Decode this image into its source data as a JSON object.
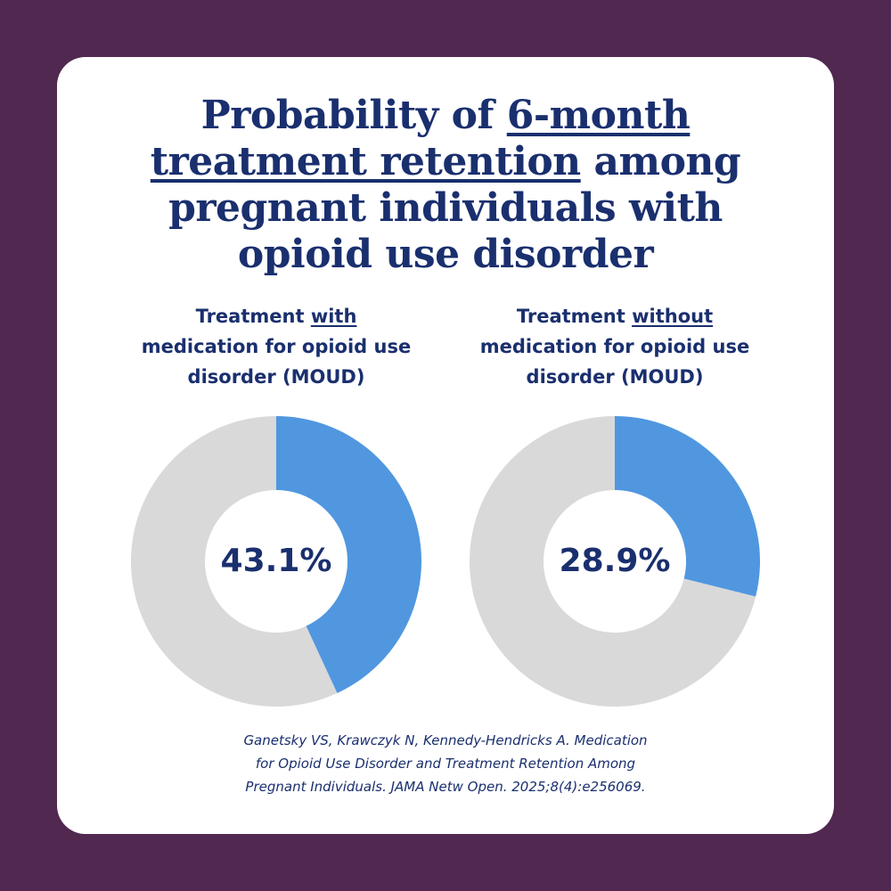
{
  "title": {
    "line1_prefix": "Probability of ",
    "line1_emph": "6-month",
    "line2_emph": "treatment retention",
    "line2_suffix": " among",
    "line3": "pregnant individuals with",
    "line4": "opioid use disorder"
  },
  "colors": {
    "background": "#502850",
    "card": "#ffffff",
    "text": "#1a2f6e",
    "retained": "#5097e0",
    "remainder": "#d9d9d9"
  },
  "chart_data": [
    {
      "type": "pie",
      "variant": "donut",
      "subtitle": {
        "line1_prefix": "Treatment ",
        "line1_emph": "with",
        "line2": "medication for opioid use",
        "line3": "disorder (MOUD)"
      },
      "value_label": "43.1%",
      "value": 43.1,
      "total": 100
    },
    {
      "type": "pie",
      "variant": "donut",
      "subtitle": {
        "line1_prefix": "Treatment ",
        "line1_emph": "without",
        "line2": "medication for opioid use",
        "line3": "disorder (MOUD)"
      },
      "value_label": "28.9%",
      "value": 28.9,
      "total": 100
    }
  ],
  "citation": {
    "line1": "Ganetsky VS, Krawczyk N, Kennedy-Hendricks A. Medication",
    "line2": "for Opioid Use Disorder and Treatment Retention Among",
    "line3": "Pregnant Individuals. JAMA Netw Open. 2025;8(4):e256069."
  }
}
